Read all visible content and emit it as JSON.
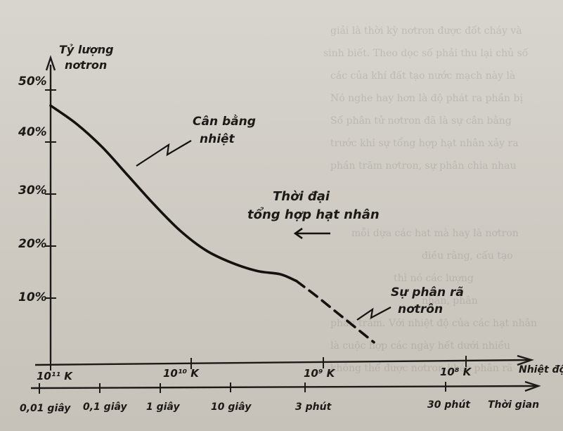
{
  "chart_data": {
    "type": "line",
    "ylabel": "Tỷ lượng nơtron",
    "xlabel_top": "Nhiệt độ",
    "xlabel_bottom": "Thời gian",
    "y_ticks": [
      "50%",
      "40%",
      "30%",
      "20%",
      "10%"
    ],
    "y_values": [
      50,
      40,
      30,
      20,
      10
    ],
    "ylim": [
      0,
      52
    ],
    "temperature_ticks": [
      "10¹¹ K",
      "10¹⁰ K",
      "10⁹ K",
      "10⁸ K"
    ],
    "time_ticks": [
      "0,01 giây",
      "0,1 giây",
      "1 giây",
      "10 giây",
      "3 phút",
      "30 phút"
    ],
    "series": [
      {
        "style": "solid",
        "points": [
          {
            "t": 0,
            "y": 47
          },
          {
            "t": 0.4,
            "y": 43.5
          },
          {
            "t": 0.8,
            "y": 39
          },
          {
            "t": 1.2,
            "y": 33.5
          },
          {
            "t": 1.6,
            "y": 28
          },
          {
            "t": 2.0,
            "y": 23
          },
          {
            "t": 2.4,
            "y": 19.2
          },
          {
            "t": 2.8,
            "y": 16.8
          },
          {
            "t": 3.2,
            "y": 15.2
          },
          {
            "t": 3.55,
            "y": 14.6
          },
          {
            "t": 3.8,
            "y": 13.3
          }
        ]
      },
      {
        "style": "dashed",
        "points": [
          {
            "t": 3.8,
            "y": 13.3
          },
          {
            "t": 4.1,
            "y": 10.5
          },
          {
            "t": 4.4,
            "y": 7.5
          },
          {
            "t": 4.7,
            "y": 4.5
          },
          {
            "t": 5.0,
            "y": 1.5
          }
        ]
      }
    ],
    "annotations": [
      {
        "text_lines": [
          "Cân bằng",
          "nhiệt"
        ]
      },
      {
        "text_lines": [
          "Thời đại",
          "tổng hợp hạt nhân"
        ]
      },
      {
        "text_lines": [
          "Sự phân rã",
          "nơtrôn"
        ]
      }
    ],
    "grid": false
  }
}
